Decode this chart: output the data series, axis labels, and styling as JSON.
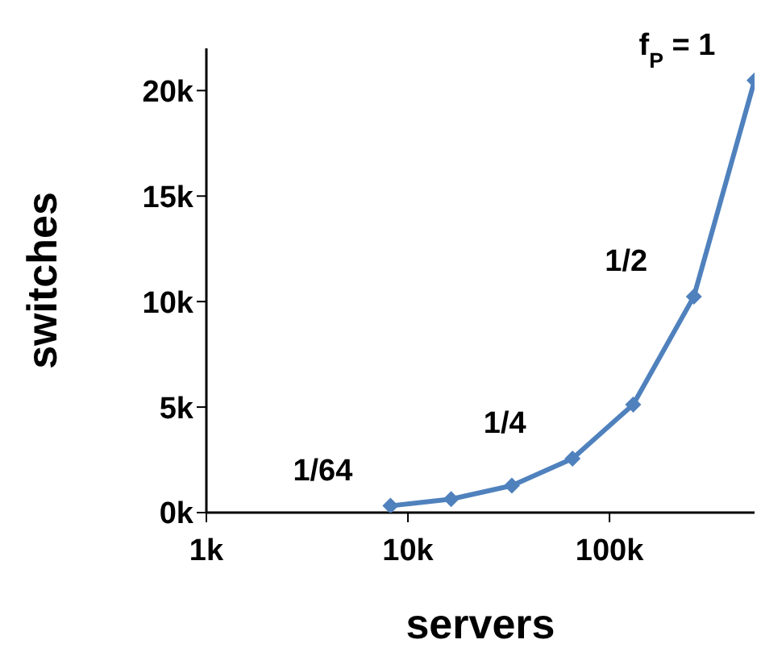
{
  "chart_data": {
    "type": "line",
    "xlabel": "servers",
    "ylabel": "switches",
    "x": [
      8192,
      16384,
      32768,
      65536,
      131072,
      262144,
      524288
    ],
    "series": [
      {
        "color": "#4f81bd",
        "values": [
          320,
          640,
          1280,
          2560,
          5120,
          10240,
          20480
        ]
      }
    ],
    "log": "x",
    "xlim": [
      1000,
      524288
    ],
    "xticks": [
      {
        "value": 1000,
        "label": "1k"
      },
      {
        "value": 10000,
        "label": "10k"
      },
      {
        "value": 100000,
        "label": "100k"
      }
    ],
    "ylim": [
      0,
      22000
    ],
    "yticks": [
      {
        "value": 0,
        "label": "0k"
      },
      {
        "value": 5000,
        "label": "5k"
      },
      {
        "value": 10000,
        "label": "10k"
      },
      {
        "value": 15000,
        "label": "15k"
      },
      {
        "value": 20000,
        "label": "20k"
      }
    ],
    "grid": false,
    "marker": "diamond",
    "line_style": "solid",
    "annotations": [
      {
        "text": "1/64",
        "x": 8192,
        "y": 320
      },
      {
        "text": "1/4",
        "x": 65536,
        "y": 2560
      },
      {
        "text": "1/2",
        "x": 262144,
        "y": 10240
      },
      {
        "text": "f$_{P}$ = 1",
        "x": 524288,
        "y": 20480
      }
    ]
  }
}
